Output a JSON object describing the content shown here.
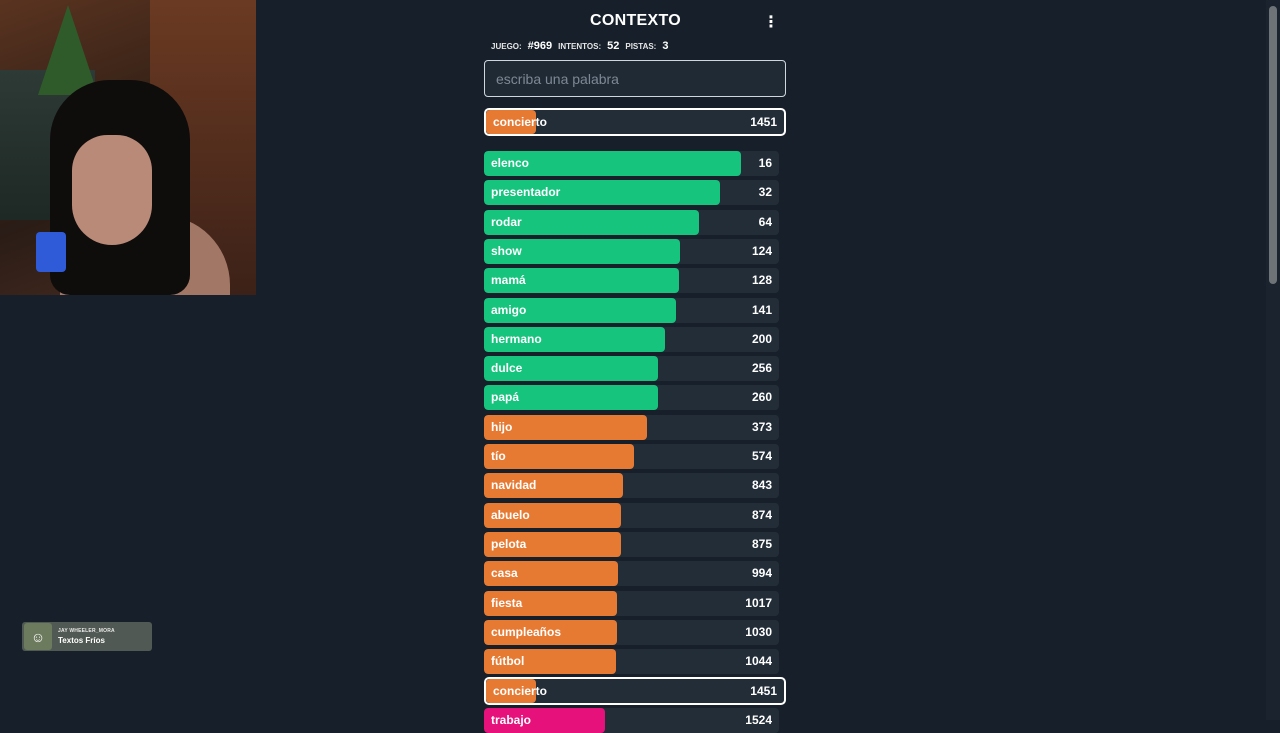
{
  "game": {
    "title": "CONTEXTO",
    "menu_icon": "⋮",
    "stats": {
      "juego_label": "JUEGO:",
      "juego_value": "#969",
      "intentos_label": "INTENTOS:",
      "intentos_value": "52",
      "pistas_label": "PISTAS:",
      "pistas_value": "3"
    },
    "search_placeholder": "escriba una palabra",
    "last_guess": {
      "word": "concierto",
      "rank": "1451",
      "color": "#e77a33"
    },
    "guesses": [
      {
        "word": "elenco",
        "rank": "16",
        "color": "#16c47d"
      },
      {
        "word": "presentador",
        "rank": "32",
        "color": "#16c47d"
      },
      {
        "word": "rodar",
        "rank": "64",
        "color": "#16c47d"
      },
      {
        "word": "show",
        "rank": "124",
        "color": "#16c47d"
      },
      {
        "word": "mamá",
        "rank": "128",
        "color": "#16c47d"
      },
      {
        "word": "amigo",
        "rank": "141",
        "color": "#16c47d"
      },
      {
        "word": "hermano",
        "rank": "200",
        "color": "#16c47d"
      },
      {
        "word": "dulce",
        "rank": "256",
        "color": "#16c47d"
      },
      {
        "word": "papá",
        "rank": "260",
        "color": "#16c47d"
      },
      {
        "word": "hijo",
        "rank": "373",
        "color": "#e77a33"
      },
      {
        "word": "tío",
        "rank": "574",
        "color": "#e77a33"
      },
      {
        "word": "navidad",
        "rank": "843",
        "color": "#e77a33"
      },
      {
        "word": "abuelo",
        "rank": "874",
        "color": "#e77a33"
      },
      {
        "word": "pelota",
        "rank": "875",
        "color": "#e77a33"
      },
      {
        "word": "casa",
        "rank": "994",
        "color": "#e77a33"
      },
      {
        "word": "fiesta",
        "rank": "1017",
        "color": "#e77a33"
      },
      {
        "word": "cumpleaños",
        "rank": "1030",
        "color": "#e77a33"
      },
      {
        "word": "fútbol",
        "rank": "1044",
        "color": "#e77a33"
      },
      {
        "word": "concierto",
        "rank": "1451",
        "color": "#e77a33",
        "current": true
      },
      {
        "word": "trabajo",
        "rank": "1524",
        "color": "#e6117a"
      }
    ]
  },
  "overlay": {
    "username": "JAY WHEELER_MORA",
    "message": "Textos Fríos"
  }
}
